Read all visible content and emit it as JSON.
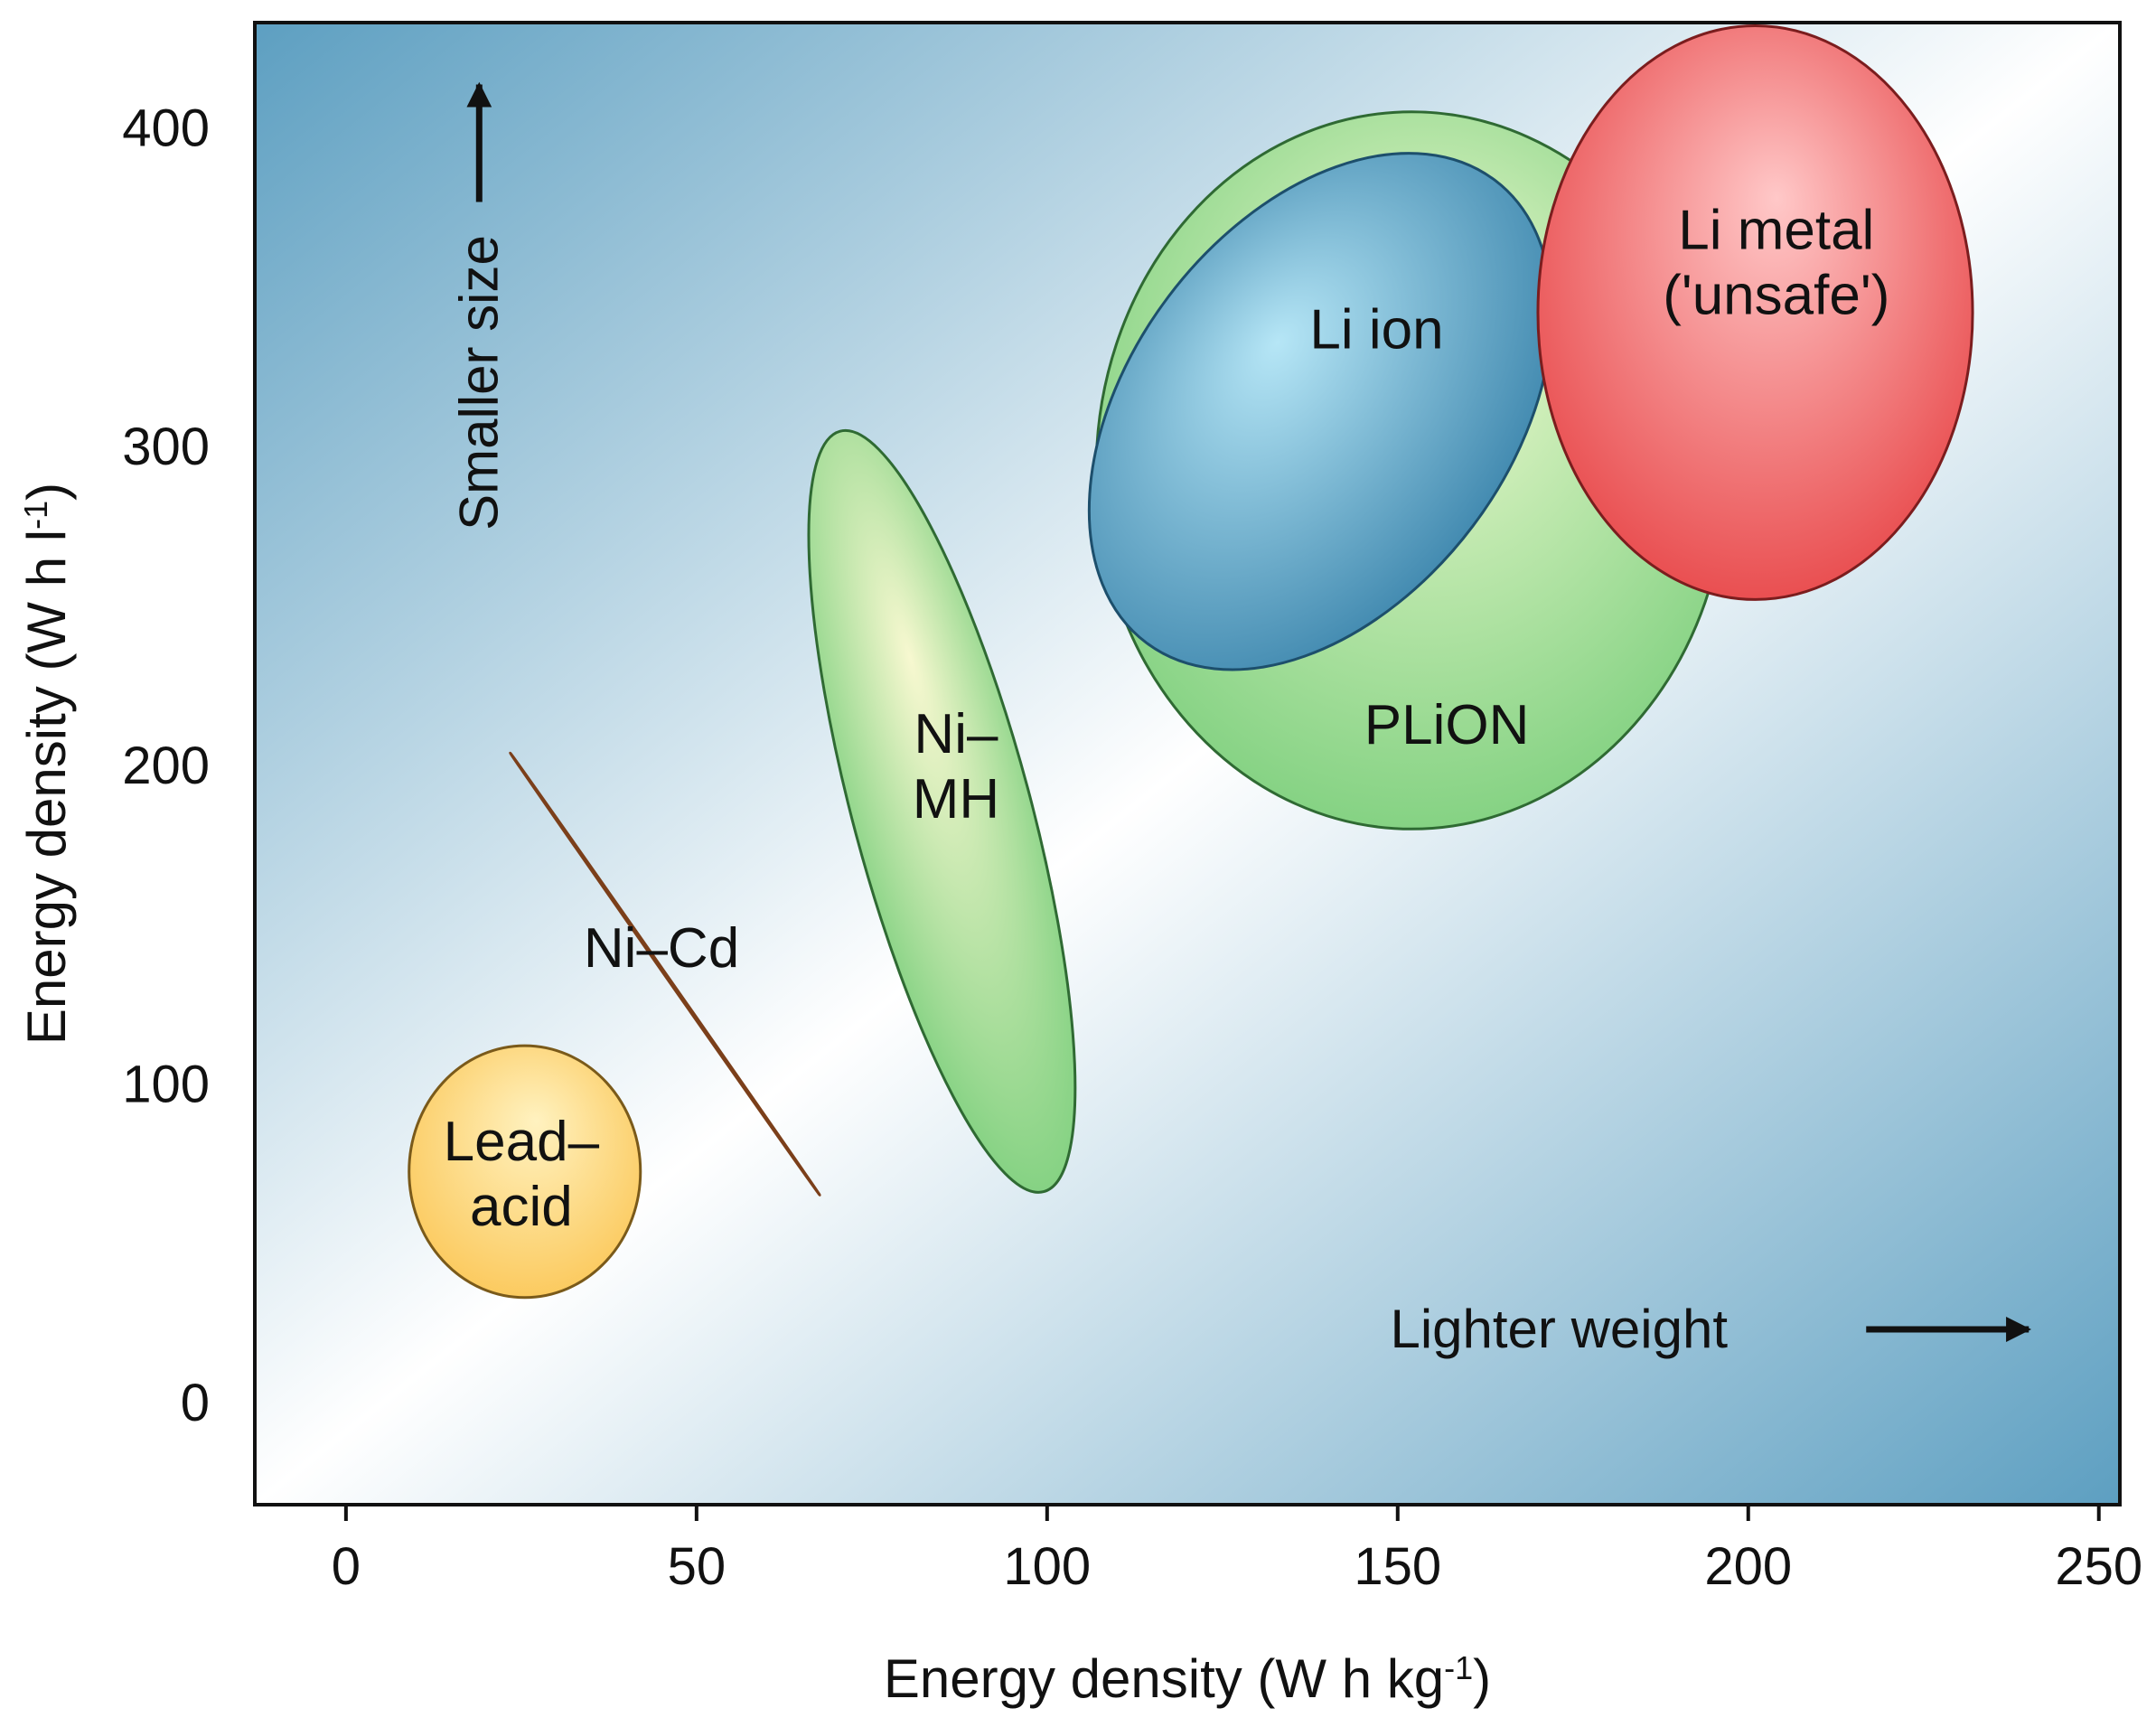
{
  "chart_data": {
    "type": "bubble-region",
    "title": "",
    "xlabel": {
      "base": "Energy density (W h kg",
      "sup": "-1",
      "close": ")"
    },
    "ylabel": {
      "base": "Energy density (W h l",
      "sup": "-1",
      "close": ")"
    },
    "xlim": [
      -13,
      253
    ],
    "ylim": [
      -32,
      433
    ],
    "xticks": [
      0,
      50,
      100,
      150,
      200,
      250
    ],
    "yticks": [
      0,
      100,
      200,
      300,
      400
    ],
    "grid": false,
    "legend": "none",
    "regions": [
      {
        "name": "PLiON",
        "label_lines": [
          "PLiON"
        ],
        "x_range": [
          107,
          197
        ],
        "y_range": [
          180,
          405
        ],
        "rotation": 0,
        "label_at": [
          157,
          213
        ],
        "colors": {
          "fill": "#7fd07f",
          "highlight": "#eefad0",
          "edge": "#2f6a33"
        }
      },
      {
        "name": "Li ion",
        "label_lines": [
          "Li ion"
        ],
        "x_range": [
          106,
          172
        ],
        "y_range": [
          230,
          392
        ],
        "rotation": -53,
        "label_at": [
          147,
          337
        ],
        "colors": {
          "fill": "#3d86ad",
          "highlight": "#b6e6f6",
          "edge": "#1d4f6c"
        }
      },
      {
        "name": "Li metal ('unsafe')",
        "label_lines": [
          "Li metal",
          "('unsafe')"
        ],
        "x_range": [
          170,
          232
        ],
        "y_range": [
          252,
          432
        ],
        "rotation": 0,
        "label_at": [
          204,
          358
        ],
        "colors": {
          "fill": "#e8484a",
          "highlight": "#ffc8c8",
          "edge": "#7b1d1e"
        }
      },
      {
        "name": "Ni-MH",
        "label_lines": [
          "Ni–",
          "MH"
        ],
        "x_range": [
          66,
          104
        ],
        "y_range": [
          66,
          305
        ],
        "rotation": -15,
        "label_at": [
          87,
          200
        ],
        "colors": {
          "fill": "#7fd07f",
          "highlight": "#f7f8d0",
          "edge": "#2f6a33"
        }
      },
      {
        "name": "Ni-Cd",
        "label_lines": [
          "Ni–Cd"
        ],
        "x_range": [
          26,
          65
        ],
        "y_range": [
          67,
          202
        ],
        "rotation": -35,
        "label_at": [
          45,
          143
        ],
        "colors": {
          "fill": "#f08d4e",
          "highlight": "#ffd8bd",
          "edge": "#7b3f1a"
        }
      },
      {
        "name": "Lead-acid",
        "label_lines": [
          "Lead–",
          "acid"
        ],
        "x_range": [
          9,
          42
        ],
        "y_range": [
          33,
          112
        ],
        "rotation": 0,
        "label_at": [
          25,
          72
        ],
        "colors": {
          "fill": "#fbc85a",
          "highlight": "#fff2c0",
          "edge": "#7a5a1a"
        }
      }
    ],
    "annotations": [
      {
        "text": "Smaller size",
        "direction": "up",
        "x": 19,
        "y": 320
      },
      {
        "text": "Lighter weight",
        "direction": "right",
        "x": 173,
        "y": 23
      }
    ]
  },
  "colors": {
    "background_outer": "#5d9fc1",
    "background_inner": "#ffffff",
    "axis": "#111111",
    "text": "#111111"
  }
}
